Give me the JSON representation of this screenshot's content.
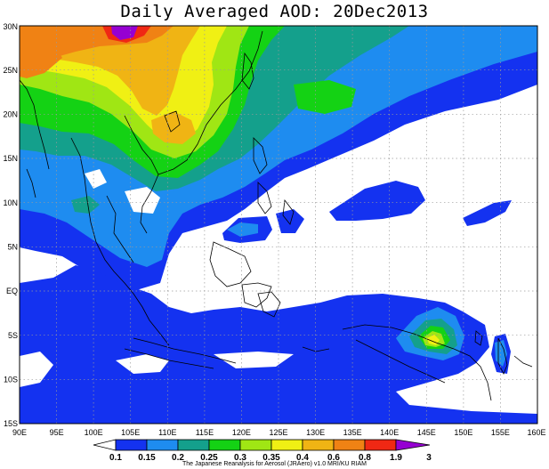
{
  "title": "Daily Averaged AOD: 20Dec2013",
  "credit": "The Japanese Reanalysis for Aerosol (JRAero) v1.0 MRI/KU RIAM",
  "map": {
    "lon_range": [
      90,
      160
    ],
    "lat_range": [
      -15,
      30
    ],
    "lon_ticks": [
      "90E",
      "95E",
      "100E",
      "105E",
      "110E",
      "115E",
      "120E",
      "125E",
      "130E",
      "135E",
      "140E",
      "145E",
      "150E",
      "155E",
      "160E"
    ],
    "lat_ticks": [
      "15S",
      "10S",
      "5S",
      "EQ",
      "5N",
      "10N",
      "15N",
      "20N",
      "25N",
      "30N"
    ],
    "gridlines": "dotted"
  },
  "colorbar": {
    "labels": [
      "0.1",
      "0.15",
      "0.2",
      "0.25",
      "0.3",
      "0.35",
      "0.4",
      "0.6",
      "0.8",
      "1.9",
      "3"
    ],
    "colors": [
      "#ffffff",
      "#1432f0",
      "#1e8cf0",
      "#14a08c",
      "#14d214",
      "#a0e614",
      "#f0f014",
      "#f0b414",
      "#f08214",
      "#f02814",
      "#9600d2"
    ]
  }
}
